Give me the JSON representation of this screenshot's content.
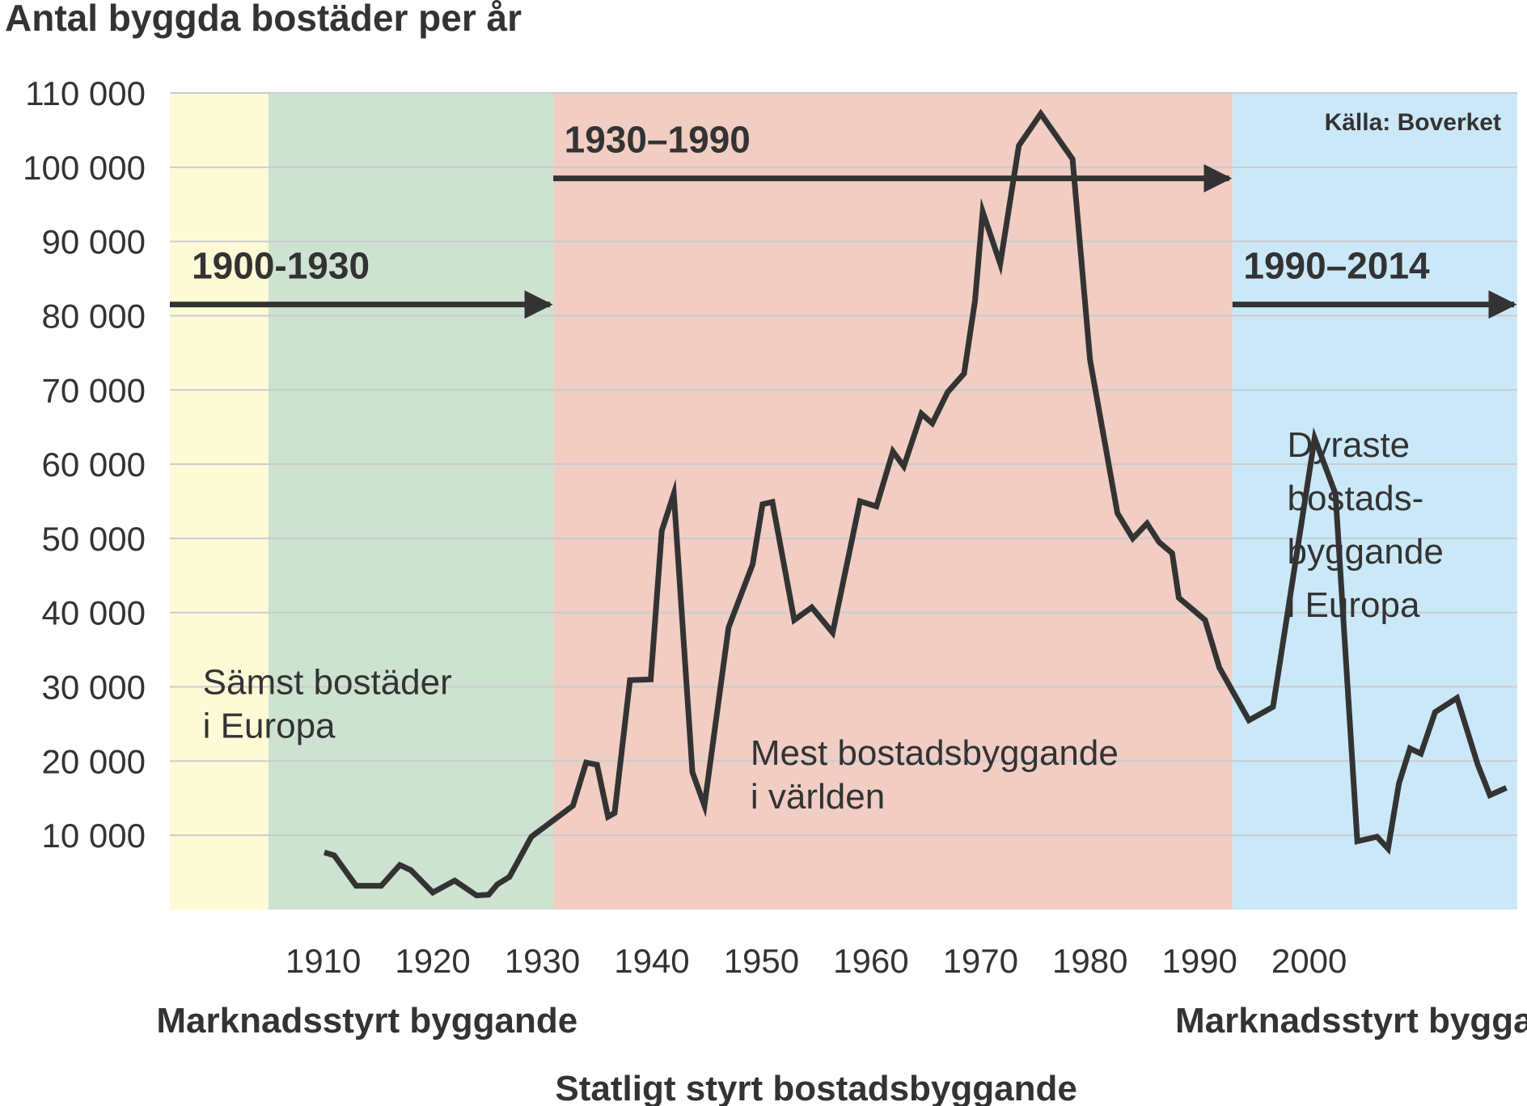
{
  "chart_data": {
    "type": "line",
    "title": "Antal byggda bostäder per år",
    "source": "Källa: Boverket",
    "xlabel": "",
    "ylabel": "",
    "xlim": [
      1896,
      2019
    ],
    "ylim": [
      0,
      110000
    ],
    "grid": true,
    "y_ticks": [
      {
        "value": 10000,
        "label": "10 000"
      },
      {
        "value": 20000,
        "label": "20 000"
      },
      {
        "value": 30000,
        "label": "30 000"
      },
      {
        "value": 40000,
        "label": "40 000"
      },
      {
        "value": 50000,
        "label": "50 000"
      },
      {
        "value": 60000,
        "label": "60 000"
      },
      {
        "value": 70000,
        "label": "70 000"
      },
      {
        "value": 80000,
        "label": "80 000"
      },
      {
        "value": 90000,
        "label": "90 000"
      },
      {
        "value": 100000,
        "label": "100 000"
      },
      {
        "value": 110000,
        "label": "110 000"
      }
    ],
    "x_ticks": [
      {
        "value": 1910,
        "label": "1910"
      },
      {
        "value": 1920,
        "label": "1920"
      },
      {
        "value": 1930,
        "label": "1930"
      },
      {
        "value": 1940,
        "label": "1940"
      },
      {
        "value": 1950,
        "label": "1950"
      },
      {
        "value": 1960,
        "label": "1960"
      },
      {
        "value": 1970,
        "label": "1970"
      },
      {
        "value": 1980,
        "label": "1980"
      },
      {
        "value": 1990,
        "label": "1990"
      },
      {
        "value": 2000,
        "label": "2000"
      }
    ],
    "bands": [
      {
        "from": 1896,
        "to": 1905,
        "color": "#fdfad6"
      },
      {
        "from": 1905,
        "to": 1931,
        "color": "#cee2d1"
      },
      {
        "from": 1931,
        "to": 1993,
        "color": "#f1cdc3"
      },
      {
        "from": 1993,
        "to": 2019,
        "color": "#cbe8f8"
      }
    ],
    "period_arrows": [
      {
        "label": "1900-1930",
        "from": 1896,
        "to": 1931,
        "y": 81500,
        "label_x": 1898,
        "label_y": 85000
      },
      {
        "label": "1930–1990",
        "from": 1931,
        "to": 1993,
        "y": 98500,
        "label_x": 1932,
        "label_y": 102000
      },
      {
        "label": "1990–2014",
        "from": 1993,
        "to": 2019,
        "y": 81500,
        "label_x": 1994,
        "label_y": 85000
      }
    ],
    "annotations": [
      {
        "lines": [
          "Sämst bostäder",
          "i Europa"
        ],
        "x": 1899,
        "y": 29000
      },
      {
        "lines": [
          "Mest bostadsbyggande",
          "i världen"
        ],
        "x": 1949,
        "y": 19500
      },
      {
        "lines": [
          "Dyraste",
          "bostads-",
          "byggande",
          "i Europa"
        ],
        "x": 1998,
        "y": 61000
      }
    ],
    "regimes": [
      {
        "label": "Marknadsstyrt byggande",
        "x": 1914,
        "row": 1
      },
      {
        "label": "Marknadsstyrt byggande",
        "x": 2007,
        "row": 1
      },
      {
        "label": "Statligt styrt bostadsbyggande",
        "x": 1955,
        "row": 2
      }
    ],
    "series": [
      {
        "name": "Antal byggda bostäder",
        "color": "#333333",
        "x": [
          1910.1,
          1911,
          1913,
          1915.3,
          1917,
          1918,
          1920,
          1922,
          1924,
          1925.1,
          1925.9,
          1927,
          1929,
          1932.8,
          1934,
          1935,
          1936,
          1936.6,
          1938,
          1939.9,
          1940.9,
          1942,
          1943.7,
          1944.8,
          1947,
          1949.2,
          1950.1,
          1951,
          1953,
          1954.6,
          1956.5,
          1959,
          1960.5,
          1962,
          1963,
          1964.6,
          1965.6,
          1967,
          1968.5,
          1969.5,
          1970.2,
          1971.8,
          1973.5,
          1975.5,
          1978.4,
          1980,
          1982.5,
          1983.9,
          1985.2,
          1986.3,
          1987.5,
          1988.1,
          1990.5,
          1991.8,
          1994.5,
          1996.7,
          2000.5,
          2002.4,
          2004.4,
          2006.2,
          2007.2,
          2008.2,
          2009.2,
          2010.2,
          2011.5,
          2013.5,
          2015.4,
          2016.5,
          2018
        ],
        "y": [
          7700,
          7300,
          3200,
          3200,
          6000,
          5300,
          2300,
          3900,
          1900,
          2000,
          3400,
          4400,
          9800,
          14000,
          19800,
          19500,
          12500,
          13000,
          30900,
          31000,
          51000,
          56000,
          18500,
          14000,
          38000,
          46500,
          54600,
          54900,
          39000,
          40700,
          37300,
          55000,
          54300,
          61700,
          59700,
          66800,
          65500,
          69700,
          72200,
          82000,
          94000,
          87000,
          102900,
          107200,
          101100,
          74000,
          53400,
          50000,
          52000,
          49500,
          48000,
          42000,
          39000,
          32600,
          25500,
          27300,
          63500,
          56000,
          9200,
          9800,
          8200,
          17000,
          21700,
          21000,
          26600,
          28500,
          19500,
          15400,
          16400
        ]
      }
    ]
  }
}
